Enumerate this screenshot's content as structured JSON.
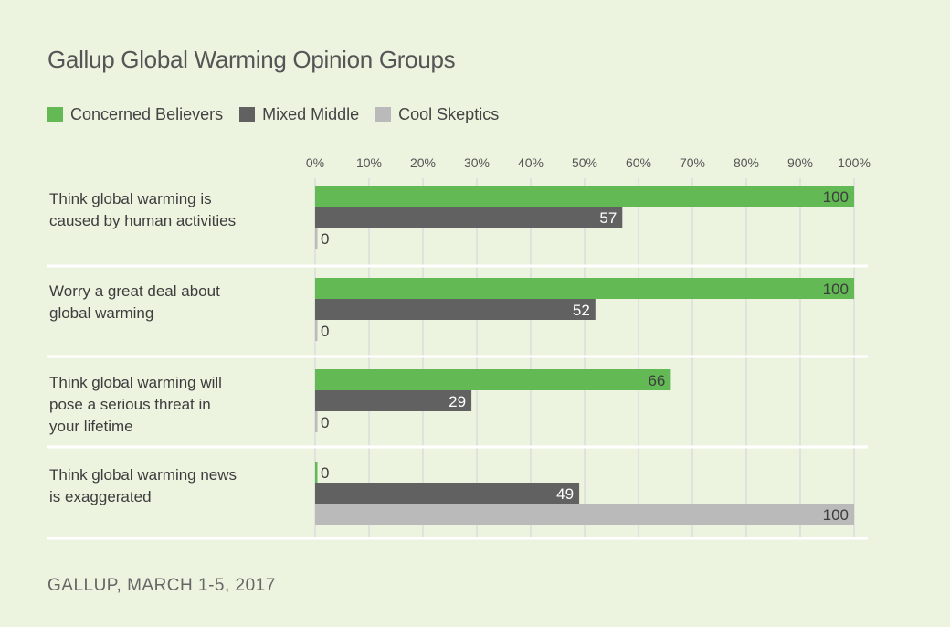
{
  "chart_data": {
    "type": "bar",
    "orientation": "horizontal",
    "title": "Gallup Global Warming Opinion Groups",
    "xlabel": "",
    "ylabel": "",
    "xlim": [
      0,
      100
    ],
    "x_ticks": [
      "0%",
      "10%",
      "20%",
      "30%",
      "40%",
      "50%",
      "60%",
      "70%",
      "80%",
      "90%",
      "100%"
    ],
    "grid": true,
    "legend_position": "top-left",
    "categories": [
      [
        "Think global warming is",
        "caused by human activities"
      ],
      [
        "Worry a great deal about",
        "global warming"
      ],
      [
        "Think global warming will",
        "pose a serious threat in",
        "your lifetime"
      ],
      [
        "Think global warming news",
        "is exaggerated"
      ]
    ],
    "series": [
      {
        "name": "Concerned Believers",
        "color": "#63b954",
        "label_color": "#3d3d3d",
        "values": [
          100,
          100,
          66,
          0
        ]
      },
      {
        "name": "Mixed Middle",
        "color": "#616161",
        "label_color": "#ffffff",
        "values": [
          57,
          52,
          29,
          49
        ]
      },
      {
        "name": "Cool Skeptics",
        "color": "#bababa",
        "label_color": "#3d3d3d",
        "values": [
          0,
          0,
          0,
          100
        ]
      }
    ],
    "source": "GALLUP, MARCH 1-5, 2017"
  }
}
